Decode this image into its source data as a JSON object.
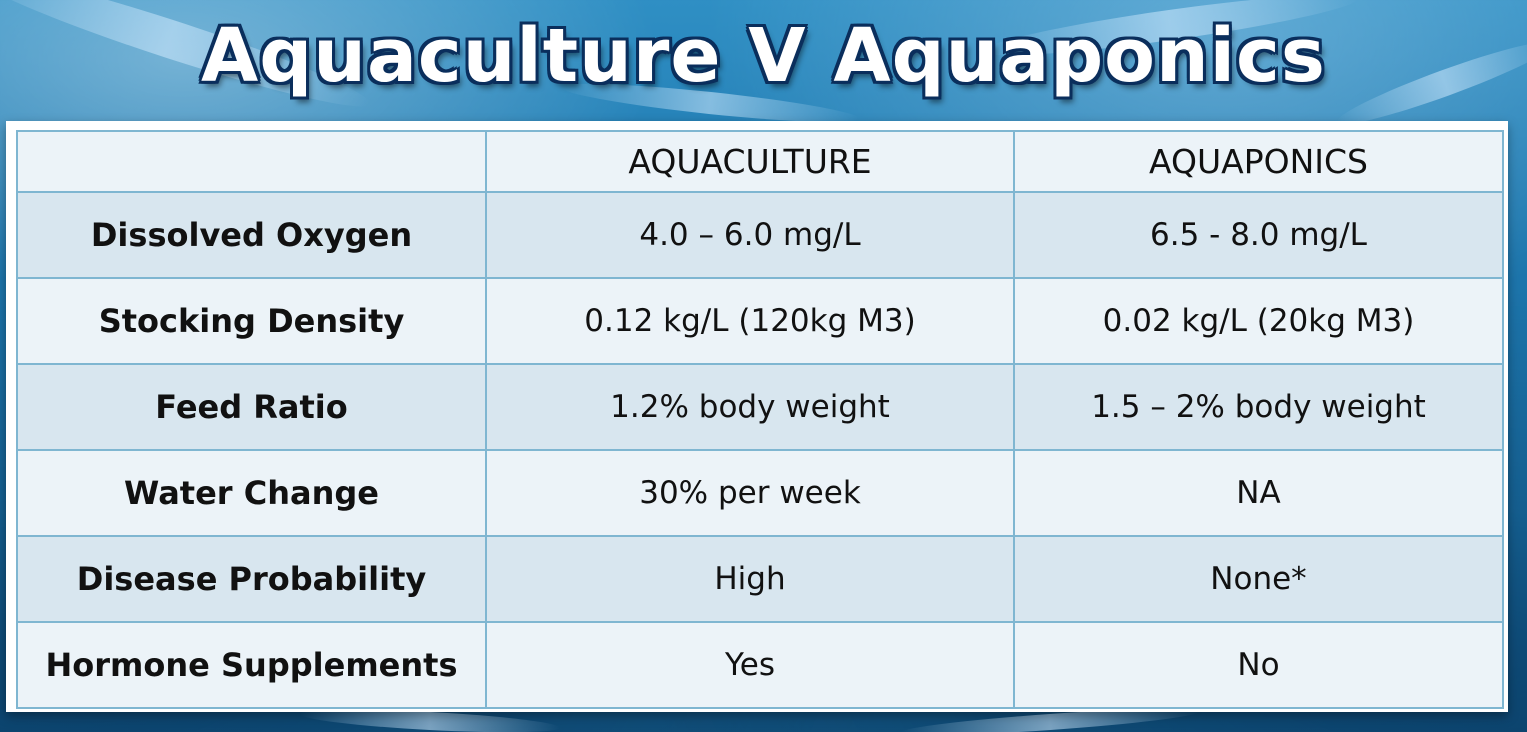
{
  "title": "Aquaculture V Aquaponics",
  "table": {
    "headers": [
      "",
      "AQUACULTURE",
      "AQUAPONICS"
    ],
    "rows": [
      {
        "label": "Dissolved Oxygen",
        "aquaculture": "4.0 – 6.0 mg/L",
        "aquaponics": "6.5 - 8.0 mg/L"
      },
      {
        "label": "Stocking Density",
        "aquaculture": "0.12 kg/L (120kg M3)",
        "aquaponics": "0.02 kg/L (20kg M3)"
      },
      {
        "label": "Feed Ratio",
        "aquaculture": "1.2% body weight",
        "aquaponics": "1.5 – 2% body weight"
      },
      {
        "label": "Water Change",
        "aquaculture": "30% per week",
        "aquaponics": "NA"
      },
      {
        "label": "Disease Probability",
        "aquaculture": "High",
        "aquaponics": "None*"
      },
      {
        "label": "Hormone Supplements",
        "aquaculture": "Yes",
        "aquaponics": "No"
      }
    ]
  },
  "colors": {
    "title_text": "#ffffff",
    "title_outline": "#0a2e5c",
    "row_shade": "#d8e6ef",
    "row_plain": "#ecf3f8",
    "grid_line": "#7fb6d1"
  }
}
